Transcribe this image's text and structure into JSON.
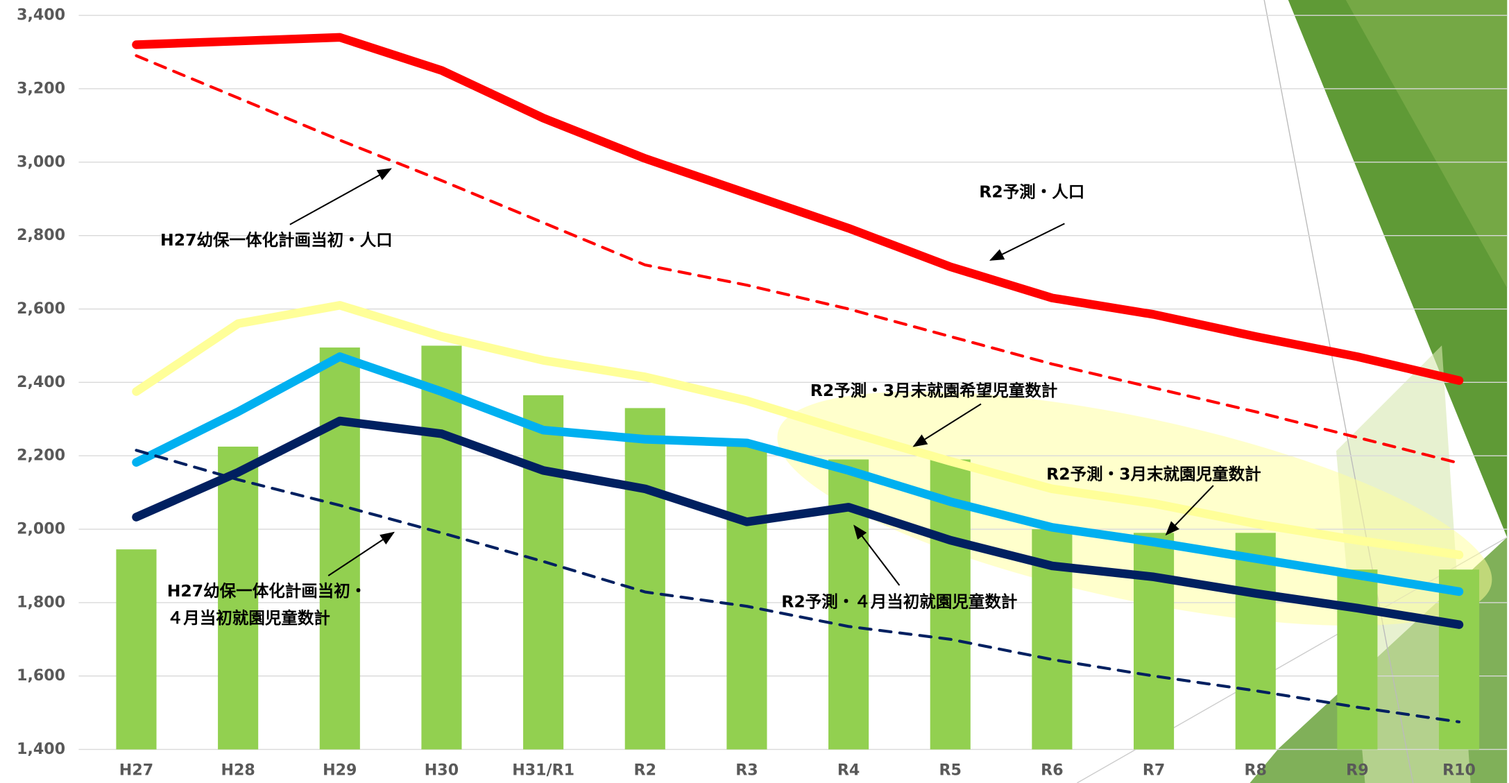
{
  "chart_data": {
    "type": "bar_line",
    "categories": [
      "H27",
      "H28",
      "H29",
      "H30",
      "H31/R1",
      "R2",
      "R3",
      "R4",
      "R5",
      "R6",
      "R7",
      "R8",
      "R9",
      "R10"
    ],
    "values": [
      1945,
      2225,
      2495,
      2500,
      2365,
      2330,
      2230,
      2190,
      2190,
      2000,
      1990,
      1990,
      1890,
      1890
    ],
    "color": "#92d050",
    "series": [
      {
        "color": "#ff0000",
        "dash": false,
        "values": [
          3320,
          3330,
          3340,
          3250,
          3120,
          3010,
          2915,
          2820,
          2715,
          2630,
          2585,
          2525,
          2470,
          2405
        ]
      },
      {
        "color": "#ff0000",
        "dash": true,
        "values": [
          3290,
          3175,
          3060,
          2950,
          2835,
          2720,
          2665,
          2600,
          2525,
          2450,
          2385,
          2320,
          2250,
          2180
        ]
      },
      {
        "color": "#ffff99",
        "dash": false,
        "values": [
          2375,
          2560,
          2610,
          2525,
          2460,
          2415,
          2350,
          2265,
          2185,
          2110,
          2070,
          2015,
          1970,
          1930
        ]
      },
      {
        "color": "#00b0f0",
        "dash": false,
        "values": [
          2182,
          2320,
          2470,
          2375,
          2270,
          2245,
          2235,
          2160,
          2075,
          2005,
          1965,
          1920,
          1875,
          1830
        ]
      },
      {
        "color": "#002060",
        "dash": false,
        "values": [
          2033,
          2155,
          2295,
          2260,
          2160,
          2110,
          2020,
          2060,
          1970,
          1900,
          1870,
          1825,
          1785,
          1740
        ]
      },
      {
        "color": "#002060",
        "dash": true,
        "values": [
          2215,
          2135,
          2065,
          1990,
          1912,
          1829,
          1790,
          1735,
          1700,
          1645,
          1600,
          1560,
          1515,
          1475
        ]
      }
    ],
    "annotations": [
      "H27幼保一体化計画当初・人口",
      "R2予測・人口",
      "R2予測・3月末就園希望児童数計",
      "R2予測・3月末就園児童数計",
      "R2予測・４月当初就園児童数計",
      "H27幼保一体化計画当初・",
      "４月当初就園児童数計"
    ],
    "ylim": [
      1400,
      3400
    ],
    "yticks": [
      {
        "value": 1400,
        "label": "1,400"
      },
      {
        "value": 1600,
        "label": "1,600"
      },
      {
        "value": 1800,
        "label": "1,800"
      },
      {
        "value": 2000,
        "label": "2,000"
      },
      {
        "value": 2200,
        "label": "2,200"
      },
      {
        "value": 2400,
        "label": "2,400"
      },
      {
        "value": 2600,
        "label": "2,600"
      },
      {
        "value": 2800,
        "label": "2,800"
      },
      {
        "value": 3000,
        "label": "3,000"
      },
      {
        "value": 3200,
        "label": "3,200"
      },
      {
        "value": 3400,
        "label": "3,400"
      }
    ],
    "grid": true
  }
}
